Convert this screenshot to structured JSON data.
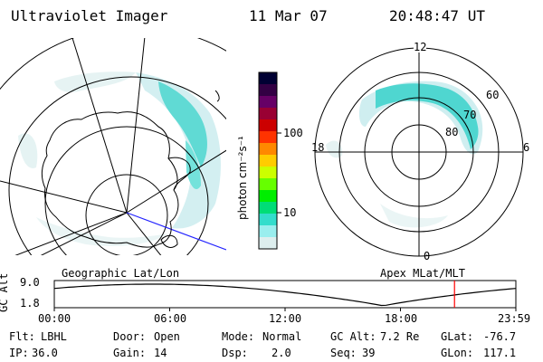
{
  "header": {
    "instrument": "Ultraviolet Imager",
    "date": "11 Mar 07",
    "time": "20:48:47 UT"
  },
  "left_map": {
    "title": "Geographic Lat/Lon"
  },
  "right_map": {
    "title": "Apex MLat/MLT",
    "mlt_labels": {
      "top": "12",
      "left": "18",
      "right": "6",
      "bottom": "0"
    },
    "lat_labels": [
      "60",
      "70",
      "80"
    ]
  },
  "colorbar": {
    "unit_label": "photon cm⁻²s⁻¹",
    "tick_labels": [
      "100",
      "10"
    ],
    "colors": [
      "#000033",
      "#330044",
      "#660066",
      "#990033",
      "#cc0000",
      "#ff3300",
      "#ff8800",
      "#ffcc00",
      "#ccff00",
      "#66ff00",
      "#00ee00",
      "#00dd77",
      "#33ddcc",
      "#99eeee",
      "#ddeeee"
    ]
  },
  "altitude_plot": {
    "ylabel": "GC Alt",
    "y_ticks": [
      "9.0",
      "1.8"
    ],
    "x_ticks": [
      "00:00",
      "06:00",
      "12:00",
      "18:00",
      "23:59"
    ],
    "current_time_marker_hours": 20.81,
    "marker_color": "#ff0000"
  },
  "footer": {
    "row1": [
      {
        "label": "Flt:",
        "value": "LBHL"
      },
      {
        "label": "Door:",
        "value": "Open"
      },
      {
        "label": "Mode:",
        "value": "Normal"
      },
      {
        "label": "GC Alt:",
        "value": "7.2 Re"
      },
      {
        "label": "GLat:",
        "value": "-76.7"
      }
    ],
    "row2": [
      {
        "label": "IP:",
        "value": "36.0"
      },
      {
        "label": "Gain:",
        "value": "14"
      },
      {
        "label": "Dsp:",
        "value": "2.0"
      },
      {
        "label": "Seq:",
        "value": "39"
      },
      {
        "label": "GLon:",
        "value": "117.1"
      }
    ]
  }
}
